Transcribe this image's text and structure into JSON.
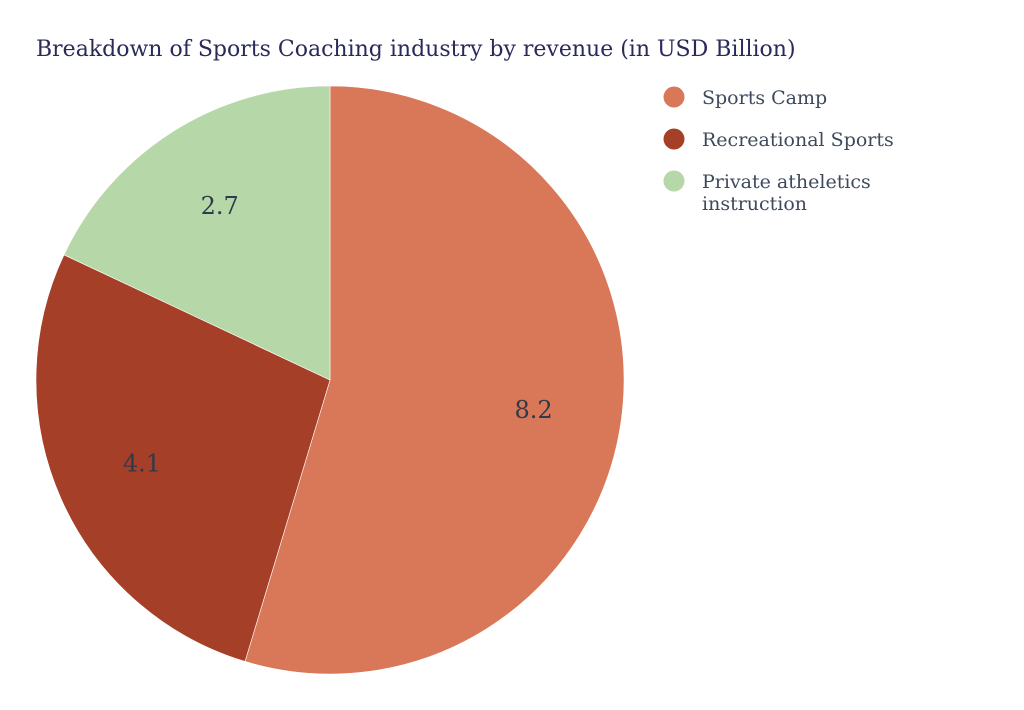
{
  "chart_data": {
    "type": "pie",
    "title": "Breakdown of Sports Coaching industry by revenue (in USD Billion)",
    "slices": [
      {
        "label": "Sports Camp",
        "value": 8.2,
        "display": "8.2",
        "color": "#d97759"
      },
      {
        "label": "Recreational Sports",
        "value": 4.1,
        "display": "4.1",
        "color": "#a63f28"
      },
      {
        "label": "Private atheletics instruction",
        "label_lines": [
          "Private atheletics",
          "instruction"
        ],
        "value": 2.7,
        "display": "2.7",
        "color": "#b6d7a8"
      }
    ],
    "direction": "clockwise",
    "start": "top",
    "legend_position": "top-right"
  }
}
